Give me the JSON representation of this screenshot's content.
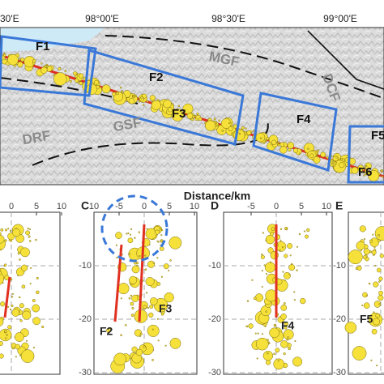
{
  "map": {
    "lon_labels": [
      "30'E",
      "98°00'E",
      "98°30'E",
      "99°00'E"
    ],
    "faults": [
      "MGF",
      "DCF",
      "DRF",
      "GSF"
    ],
    "boxes": [
      "F1",
      "F2",
      "F3",
      "F4",
      "F5",
      "F6"
    ]
  },
  "sections": {
    "axis_title": "Distance/km",
    "panels": [
      {
        "xticks": [
          0,
          5,
          10
        ]
      },
      {
        "letter": "C",
        "xticks": [
          10,
          -5,
          0,
          5,
          10
        ],
        "yticks": [
          -10,
          -20,
          -30
        ],
        "fault_labels": [
          "F2",
          "F3"
        ]
      },
      {
        "letter": "D",
        "xticks": [
          -5,
          0,
          5,
          10
        ],
        "yticks": [
          -10,
          -20,
          -30
        ],
        "fault_labels": [
          "F4"
        ]
      },
      {
        "letter": "E",
        "xticks": [],
        "yticks": [
          -10,
          -20,
          -30
        ],
        "fault_labels": [
          "F5"
        ]
      }
    ]
  }
}
